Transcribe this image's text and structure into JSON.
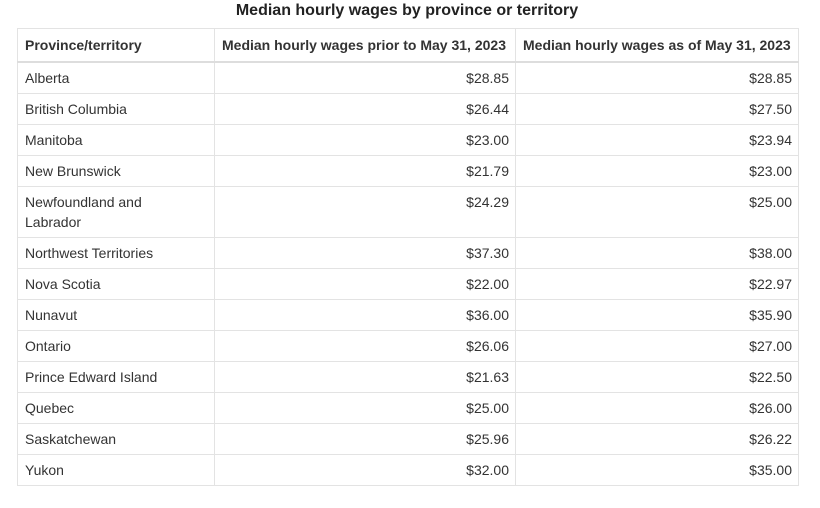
{
  "title": "Median hourly wages by province or territory",
  "table": {
    "header": [
      "Province/territory",
      "Median hourly wages prior to May 31, 2023",
      "Median hourly wages as of May 31, 2023"
    ],
    "rows": [
      [
        "Alberta",
        "$28.85",
        "$28.85"
      ],
      [
        "British Columbia",
        "$26.44",
        "$27.50"
      ],
      [
        "Manitoba",
        "$23.00",
        "$23.94"
      ],
      [
        "New Brunswick",
        "$21.79",
        "$23.00"
      ],
      [
        "Newfoundland and Labrador",
        "$24.29",
        "$25.00"
      ],
      [
        "Northwest Territories",
        "$37.30",
        "$38.00"
      ],
      [
        "Nova Scotia",
        "$22.00",
        "$22.97"
      ],
      [
        "Nunavut",
        "$36.00",
        "$35.90"
      ],
      [
        "Ontario",
        "$26.06",
        "$27.00"
      ],
      [
        "Prince Edward Island",
        "$21.63",
        "$22.50"
      ],
      [
        "Quebec",
        "$25.00",
        "$26.00"
      ],
      [
        "Saskatchewan",
        "$25.96",
        "$26.22"
      ],
      [
        "Yukon",
        "$32.00",
        "$35.00"
      ]
    ]
  }
}
